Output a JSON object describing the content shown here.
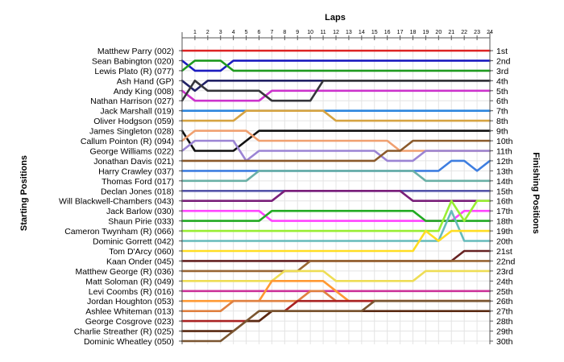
{
  "chart_data": {
    "type": "line",
    "title": "Laps",
    "ylabel_left": "Starting Positions",
    "ylabel_right": "Finishing Positions",
    "laps": [
      1,
      2,
      3,
      4,
      5,
      6,
      7,
      8,
      9,
      10,
      11,
      12,
      13,
      14,
      15,
      16,
      17,
      18,
      19,
      20,
      21,
      22,
      23,
      24
    ],
    "starting_labels": [
      "Matthew Parry (002)",
      "Sean Babington (020)",
      "Lewis Plato (R) (077)",
      "Ash Hand (GP)",
      "Andy King (008)",
      "Nathan Harrison (027)",
      "Jack Marshall (019)",
      "Oliver Hodgson (059)",
      "James Singleton (028)",
      "Callum Pointon (R) (094)",
      "George Williams (022)",
      "Jonathan Davis (021)",
      "Harry Crawley (037)",
      "Thomas Ford (017)",
      "Declan Jones (018)",
      "Will Blackwell-Chambers (043)",
      "Jack Barlow (030)",
      "Shaun Pirie (033)",
      "Cameron Twynham (R) (066)",
      "Dominic Gorrett (042)",
      "Tom D'Arcy (060)",
      "Kaan Onder (045)",
      "Matthew George (R) (036)",
      "Matt Soloman (R) (049)",
      "Levi Coombs (R) (016)",
      "Jordan Houghton (053)",
      "Ashlee Whiteman (013)",
      "George Cosgrove (023)",
      "Charlie Streather (R) (025)",
      "Dominic Wheatley (050)"
    ],
    "finishing_labels": [
      "1st",
      "2nd",
      "3rd",
      "4th",
      "5th",
      "6th",
      "7th",
      "8th",
      "9th",
      "10th",
      "11th",
      "12th",
      "13th",
      "14th",
      "15th",
      "16th",
      "17th",
      "18th",
      "19th",
      "20th",
      "21st",
      "22nd",
      "23rd",
      "24th",
      "25th",
      "26th",
      "27th",
      "28th",
      "29th",
      "30th"
    ],
    "series": [
      {
        "start": 1,
        "color": "#dd2222",
        "positions": [
          1,
          1,
          1,
          1,
          1,
          1,
          1,
          1,
          1,
          1,
          1,
          1,
          1,
          1,
          1,
          1,
          1,
          1,
          1,
          1,
          1,
          1,
          1,
          1
        ]
      },
      {
        "start": 2,
        "color": "#1c1cc0",
        "positions": [
          3,
          3,
          3,
          2,
          2,
          2,
          2,
          2,
          2,
          2,
          2,
          2,
          2,
          2,
          2,
          2,
          2,
          2,
          2,
          2,
          2,
          2,
          2,
          2
        ]
      },
      {
        "start": 3,
        "color": "#1f9a1f",
        "positions": [
          2,
          2,
          2,
          3,
          3,
          3,
          3,
          3,
          3,
          3,
          3,
          3,
          3,
          3,
          3,
          3,
          3,
          3,
          3,
          3,
          3,
          3,
          3,
          3
        ]
      },
      {
        "start": 4,
        "color": "#222266",
        "positions": [
          5,
          4,
          4,
          4,
          4,
          4,
          4,
          4,
          4,
          4,
          4,
          4,
          4,
          4,
          4,
          4,
          4,
          4,
          4,
          4,
          4,
          4,
          4,
          4
        ]
      },
      {
        "start": 5,
        "color": "#cc33cc",
        "positions": [
          6,
          6,
          6,
          6,
          6,
          6,
          5,
          5,
          5,
          5,
          5,
          5,
          5,
          5,
          5,
          5,
          5,
          5,
          5,
          5,
          5,
          5,
          5,
          5
        ]
      },
      {
        "start": 6,
        "color": "#35353a",
        "positions": [
          4,
          5,
          5,
          5,
          5,
          5,
          6,
          6,
          6,
          6,
          4,
          4,
          4,
          4,
          4,
          4,
          4,
          4,
          4,
          4,
          4,
          4,
          4,
          4
        ]
      },
      {
        "start": 7,
        "color": "#2e86de",
        "positions": [
          7,
          7,
          7,
          7,
          7,
          7,
          7,
          7,
          7,
          7,
          7,
          7,
          7,
          7,
          7,
          7,
          7,
          7,
          7,
          7,
          7,
          7,
          7,
          7
        ]
      },
      {
        "start": 8,
        "color": "#d6a341",
        "positions": [
          8,
          8,
          8,
          8,
          7,
          7,
          7,
          7,
          7,
          7,
          7,
          8,
          8,
          8,
          8,
          8,
          8,
          8,
          8,
          8,
          8,
          8,
          8,
          8
        ]
      },
      {
        "start": 9,
        "color": "#111111",
        "positions": [
          11,
          11,
          11,
          11,
          10,
          9,
          9,
          9,
          9,
          9,
          9,
          9,
          9,
          9,
          9,
          9,
          9,
          9,
          9,
          9,
          9,
          9,
          9,
          9
        ]
      },
      {
        "start": 10,
        "color": "#f0a070",
        "positions": [
          9,
          9,
          9,
          9,
          9,
          10,
          10,
          10,
          10,
          10,
          10,
          10,
          10,
          10,
          10,
          10,
          11,
          11,
          11,
          11,
          11,
          11,
          11,
          11
        ]
      },
      {
        "start": 11,
        "color": "#9b84d4",
        "positions": [
          10,
          10,
          10,
          10,
          12,
          11,
          11,
          11,
          11,
          11,
          11,
          11,
          11,
          11,
          11,
          12,
          12,
          12,
          11,
          11,
          11,
          11,
          11,
          11
        ]
      },
      {
        "start": 12,
        "color": "#8b5a2b",
        "positions": [
          12,
          12,
          12,
          12,
          12,
          12,
          12,
          12,
          12,
          12,
          12,
          12,
          12,
          12,
          12,
          11,
          11,
          10,
          10,
          10,
          10,
          10,
          10,
          10
        ]
      },
      {
        "start": 13,
        "color": "#3e7ee0",
        "positions": [
          13,
          13,
          13,
          13,
          13,
          13,
          13,
          13,
          13,
          13,
          13,
          13,
          13,
          13,
          13,
          13,
          13,
          13,
          13,
          13,
          12,
          12,
          13,
          12
        ]
      },
      {
        "start": 14,
        "color": "#6ab0a6",
        "positions": [
          14,
          14,
          14,
          14,
          14,
          13,
          13,
          13,
          13,
          13,
          13,
          13,
          13,
          13,
          13,
          13,
          13,
          13,
          14,
          14,
          14,
          14,
          14,
          14
        ]
      },
      {
        "start": 15,
        "color": "#5555aa",
        "positions": [
          15,
          15,
          15,
          15,
          15,
          15,
          15,
          15,
          15,
          15,
          15,
          15,
          15,
          15,
          15,
          15,
          15,
          15,
          15,
          15,
          15,
          15,
          15,
          15
        ]
      },
      {
        "start": 16,
        "color": "#7a1f7a",
        "positions": [
          16,
          16,
          16,
          16,
          16,
          16,
          16,
          15,
          15,
          15,
          15,
          15,
          15,
          15,
          15,
          15,
          15,
          16,
          16,
          16,
          16,
          16,
          16,
          16
        ]
      },
      {
        "start": 17,
        "color": "#ff44ff",
        "positions": [
          17,
          17,
          17,
          17,
          17,
          17,
          18,
          18,
          18,
          18,
          18,
          18,
          18,
          18,
          18,
          18,
          18,
          18,
          18,
          18,
          18,
          17,
          17,
          17
        ]
      },
      {
        "start": 18,
        "color": "#22aa22",
        "positions": [
          18,
          18,
          18,
          18,
          18,
          18,
          17,
          17,
          17,
          17,
          17,
          17,
          17,
          17,
          17,
          17,
          17,
          17,
          18,
          18,
          18,
          18,
          18,
          18
        ]
      },
      {
        "start": 19,
        "color": "#99ee33",
        "positions": [
          19,
          19,
          19,
          19,
          19,
          19,
          19,
          19,
          19,
          19,
          19,
          19,
          19,
          19,
          19,
          19,
          19,
          19,
          19,
          19,
          16,
          18,
          16,
          16
        ]
      },
      {
        "start": 20,
        "color": "#66bbbb",
        "positions": [
          20,
          20,
          20,
          20,
          20,
          20,
          20,
          20,
          20,
          20,
          20,
          20,
          20,
          20,
          20,
          20,
          20,
          20,
          20,
          20,
          17,
          20,
          20,
          20
        ]
      },
      {
        "start": 21,
        "color": "#ffdd22",
        "positions": [
          21,
          21,
          21,
          21,
          21,
          21,
          21,
          21,
          21,
          21,
          21,
          21,
          21,
          21,
          21,
          21,
          21,
          21,
          19,
          20,
          19,
          19,
          19,
          19
        ]
      },
      {
        "start": 22,
        "color": "#662222",
        "positions": [
          22,
          22,
          22,
          22,
          22,
          22,
          22,
          22,
          22,
          22,
          22,
          22,
          22,
          22,
          22,
          22,
          22,
          22,
          22,
          22,
          22,
          21,
          21,
          21
        ]
      },
      {
        "start": 23,
        "color": "#996633",
        "positions": [
          23,
          23,
          23,
          23,
          23,
          23,
          23,
          23,
          23,
          22,
          22,
          22,
          22,
          22,
          22,
          22,
          22,
          22,
          22,
          22,
          22,
          22,
          22,
          22
        ]
      },
      {
        "start": 24,
        "color": "#eedd55",
        "positions": [
          24,
          24,
          24,
          24,
          24,
          24,
          24,
          23,
          23,
          23,
          23,
          24,
          24,
          24,
          24,
          24,
          24,
          24,
          23,
          23,
          23,
          23,
          23,
          23
        ]
      },
      {
        "start": 25,
        "color": "#cc3399",
        "positions": [
          25,
          25,
          25,
          25,
          25,
          25,
          25,
          25,
          25,
          25,
          25,
          25,
          25,
          25,
          25,
          25,
          25,
          25,
          25,
          25,
          25,
          25,
          25,
          25
        ]
      },
      {
        "start": 26,
        "color": "#ff9933",
        "positions": [
          26,
          26,
          26,
          26,
          26,
          26,
          24,
          24,
          24,
          24,
          24,
          25,
          26,
          26,
          26,
          26,
          26,
          26,
          26,
          26,
          26,
          26,
          26,
          26
        ]
      },
      {
        "start": 27,
        "color": "#e08040",
        "positions": [
          27,
          27,
          27,
          26,
          26,
          26,
          26,
          26,
          26,
          25,
          25,
          26,
          26,
          26,
          26,
          26,
          26,
          26,
          26,
          26,
          26,
          26,
          26,
          26
        ]
      },
      {
        "start": 28,
        "color": "#aa2222",
        "positions": [
          28,
          28,
          28,
          28,
          28,
          28,
          27,
          27,
          26,
          26,
          26,
          26,
          26,
          26,
          26,
          26,
          26,
          26,
          26,
          26,
          26,
          26,
          26,
          26
        ]
      },
      {
        "start": 29,
        "color": "#5a2a12",
        "positions": [
          29,
          29,
          29,
          29,
          28,
          28,
          27,
          27,
          27,
          27,
          27,
          27,
          27,
          27,
          27,
          27,
          27,
          27,
          27,
          27,
          27,
          27,
          27,
          27
        ]
      },
      {
        "start": 30,
        "color": "#7a5530",
        "positions": [
          30,
          30,
          30,
          29,
          28,
          27,
          27,
          27,
          27,
          27,
          27,
          27,
          27,
          27,
          26,
          26,
          26,
          26,
          26,
          26,
          26,
          26,
          26,
          26
        ]
      }
    ],
    "grid": true,
    "legend": "none"
  }
}
